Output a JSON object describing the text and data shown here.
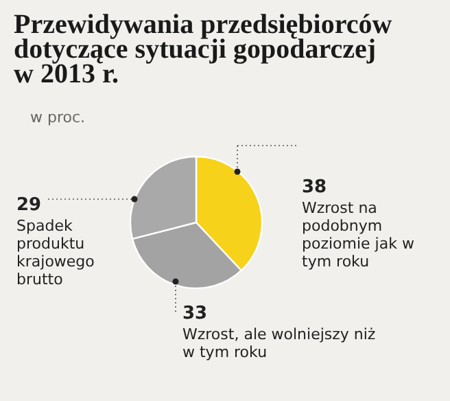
{
  "chart_data": {
    "type": "pie",
    "title": "Przewidywania przedsiębiorców dotyczące sytuacji gopodarczej w 2013 r.",
    "subtitle": "w proc.",
    "categories": [
      "Wzrost na podobnym poziomie jak w tym roku",
      "Wzrost, ale wolniejszy niż w tym roku",
      "Spadek produktu krajowego brutto"
    ],
    "values": [
      38,
      33,
      29
    ],
    "colors": [
      "#f7d21a",
      "#a3a3a3",
      "#a9a9a9"
    ],
    "data_labels": true
  }
}
